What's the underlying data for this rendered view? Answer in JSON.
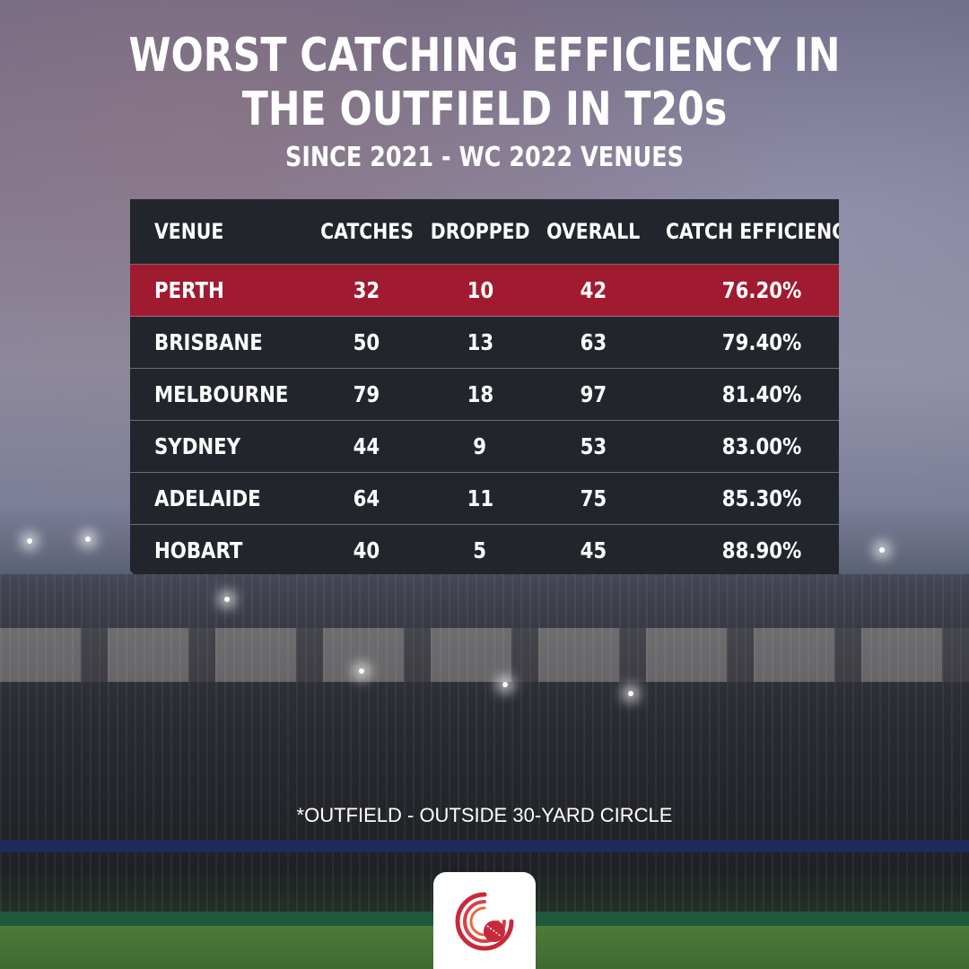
{
  "title_line1": "WORST CATCHING EFFICIENCY IN",
  "title_line2": "THE OUTFIELD IN T20s",
  "subtitle": "SINCE 2021 - WC 2022 VENUES",
  "columns": [
    "VENUE",
    "CATCHES",
    "DROPPED",
    "OVERALL",
    "CATCH EFFICIENCY"
  ],
  "rows": [
    {
      "venue": "PERTH",
      "catches": "32",
      "dropped": "10",
      "overall": "42",
      "efficiency": "76.20%"
    },
    {
      "venue": "BRISBANE",
      "catches": "50",
      "dropped": "13",
      "overall": "63",
      "efficiency": "79.40%"
    },
    {
      "venue": "MELBOURNE",
      "catches": "79",
      "dropped": "18",
      "overall": "97",
      "efficiency": "81.40%"
    },
    {
      "venue": "SYDNEY",
      "catches": "44",
      "dropped": "9",
      "overall": "53",
      "efficiency": "83.00%"
    },
    {
      "venue": "ADELAIDE",
      "catches": "64",
      "dropped": "11",
      "overall": "75",
      "efficiency": "85.30%"
    },
    {
      "venue": "HOBART",
      "catches": "40",
      "dropped": "5",
      "overall": "45",
      "efficiency": "88.90%"
    }
  ],
  "footnote": "*OUTFIELD - OUTSIDE 30-YARD CIRCLE",
  "colors": {
    "highlight": "#a01b30",
    "table_bg": "#22252c",
    "logo_red": "#c8283c",
    "logo_orange": "#e86a3a"
  },
  "logo_icon": "cricket-ball-logo-icon"
}
